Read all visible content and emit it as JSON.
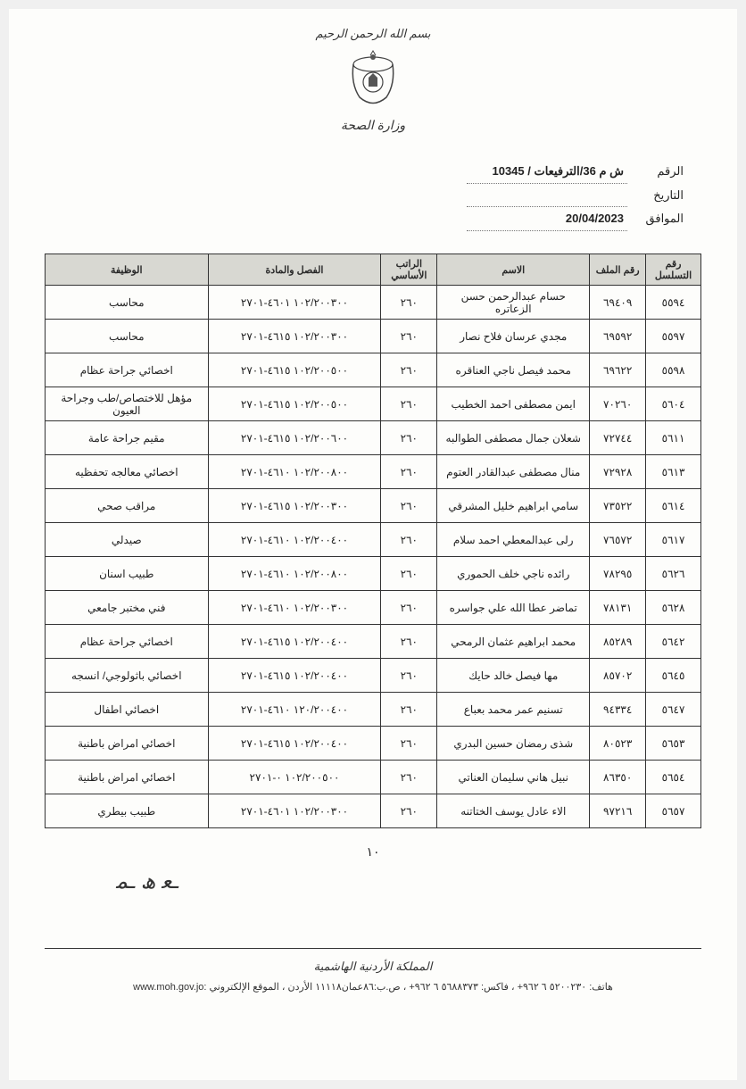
{
  "letterhead": {
    "bismillah": "بسم الله الرحمن الرحيم",
    "ministry": "وزارة الصحة"
  },
  "meta": {
    "ref_label": "الرقم",
    "ref_value": "ش م 36/الترفيعات / 10345",
    "date_label": "التاريخ",
    "date_value": "",
    "corr_label": "الموافق",
    "corr_value": "20/04/2023"
  },
  "table": {
    "headers": {
      "serial": "رقم التسلسل",
      "file": "رقم الملف",
      "name": "الاسم",
      "salary": "الراتب الأساسي",
      "grade": "الفصل والمادة",
      "job": "الوظيفة"
    },
    "rows": [
      {
        "serial": "٥٥٩٤",
        "file": "٦٩٤٠٩",
        "name": "حسام عبدالرحمن حسن الزعاتره",
        "salary": "٢٦٠",
        "grade": "١٠٢/٢٠٠٣٠٠ ٤٦٠١-٢٧٠١",
        "job": "محاسب"
      },
      {
        "serial": "٥٥٩٧",
        "file": "٦٩٥٩٢",
        "name": "مجدي عرسان فلاح نصار",
        "salary": "٢٦٠",
        "grade": "١٠٢/٢٠٠٣٠٠ ٤٦١٥-٢٧٠١",
        "job": "محاسب"
      },
      {
        "serial": "٥٥٩٨",
        "file": "٦٩٦٢٢",
        "name": "محمد فيصل ناجي العناقره",
        "salary": "٢٦٠",
        "grade": "١٠٢/٢٠٠٥٠٠ ٤٦١٥-٢٧٠١",
        "job": "اخصائي جراحة عظام"
      },
      {
        "serial": "٥٦٠٤",
        "file": "٧٠٢٦٠",
        "name": "ايمن مصطفى احمد الخطيب",
        "salary": "٢٦٠",
        "grade": "١٠٢/٢٠٠٥٠٠ ٤٦١٥-٢٧٠١",
        "job": "مؤهل للاختصاص/طب وجراحة العيون"
      },
      {
        "serial": "٥٦١١",
        "file": "٧٢٧٤٤",
        "name": "شعلان جمال مصطفى الطوالبه",
        "salary": "٢٦٠",
        "grade": "١٠٢/٢٠٠٦٠٠ ٤٦١٥-٢٧٠١",
        "job": "مقيم جراحة عامة"
      },
      {
        "serial": "٥٦١٣",
        "file": "٧٢٩٢٨",
        "name": "منال مصطفى عبدالقادر العتوم",
        "salary": "٢٦٠",
        "grade": "١٠٢/٢٠٠٨٠٠ ٤٦١٠-٢٧٠١",
        "job": "اخصائي معالجه تحفظيه"
      },
      {
        "serial": "٥٦١٤",
        "file": "٧٣٥٢٢",
        "name": "سامي ابراهيم خليل المشرقي",
        "salary": "٢٦٠",
        "grade": "١٠٢/٢٠٠٣٠٠ ٤٦١٥-٢٧٠١",
        "job": "مراقب صحي"
      },
      {
        "serial": "٥٦١٧",
        "file": "٧٦٥٧٢",
        "name": "رلى عبدالمعطي احمد سلام",
        "salary": "٢٦٠",
        "grade": "١٠٢/٢٠٠٤٠٠ ٤٦١٠-٢٧٠١",
        "job": "صيدلي"
      },
      {
        "serial": "٥٦٢٦",
        "file": "٧٨٢٩٥",
        "name": "رائده ناجي خلف الحموري",
        "salary": "٢٦٠",
        "grade": "١٠٢/٢٠٠٨٠٠ ٤٦١٠-٢٧٠١",
        "job": "طبيب اسنان"
      },
      {
        "serial": "٥٦٢٨",
        "file": "٧٨١٣١",
        "name": "تماضر عطا الله علي جواسره",
        "salary": "٢٦٠",
        "grade": "١٠٢/٢٠٠٣٠٠ ٤٦١٠-٢٧٠١",
        "job": "فني مختبر جامعي"
      },
      {
        "serial": "٥٦٤٢",
        "file": "٨٥٢٨٩",
        "name": "محمد ابراهيم عثمان الرمحي",
        "salary": "٢٦٠",
        "grade": "١٠٢/٢٠٠٤٠٠ ٤٦١٥-٢٧٠١",
        "job": "اخصائي جراحة عظام"
      },
      {
        "serial": "٥٦٤٥",
        "file": "٨٥٧٠٢",
        "name": "مها فيصل خالد حايك",
        "salary": "٢٦٠",
        "grade": "١٠٢/٢٠٠٤٠٠ ٤٦١٥-٢٧٠١",
        "job": "اخصائي باثولوجي/ انسجه"
      },
      {
        "serial": "٥٦٤٧",
        "file": "٩٤٣٣٤",
        "name": "تسنيم عمر محمد بعباع",
        "salary": "٢٦٠",
        "grade": "١٢٠/٢٠٠٤٠٠ ٤٦١٠-٢٧٠١",
        "job": "اخصائي اطفال"
      },
      {
        "serial": "٥٦٥٣",
        "file": "٨٠٥٢٣",
        "name": "شذى رمضان حسين البدري",
        "salary": "٢٦٠",
        "grade": "١٠٢/٢٠٠٤٠٠ ٤٦١٥-٢٧٠١",
        "job": "اخصائي امراض باطنية"
      },
      {
        "serial": "٥٦٥٤",
        "file": "٨٦٣٥٠",
        "name": "نبيل هاني سليمان العناتي",
        "salary": "٢٦٠",
        "grade": "١٠٢/٢٠٠٥٠٠ ٠-٢٧٠١",
        "job": "اخصائي امراض باطنية"
      },
      {
        "serial": "٥٦٥٧",
        "file": "٩٧٢١٦",
        "name": "الاء عادل يوسف الختاتنه",
        "salary": "٢٦٠",
        "grade": "١٠٢/٢٠٠٣٠٠ ٤٦٠١-٢٧٠١",
        "job": "طبيب بيطري"
      }
    ]
  },
  "page_number": "١٠",
  "footer": {
    "country": "المملكة الأردنية الهاشمية",
    "contact": "هاتف: ٥٢٠٠٢٣٠ ٦ ٩٦٢+ ، فاكس: ٥٦٨٨٣٧٣ ٦ ٩٦٢+ ، ص.ب:٨٦عمان١١١١٨ الأردن ، الموقع الإلكتروني :www.moh.gov.jo"
  }
}
